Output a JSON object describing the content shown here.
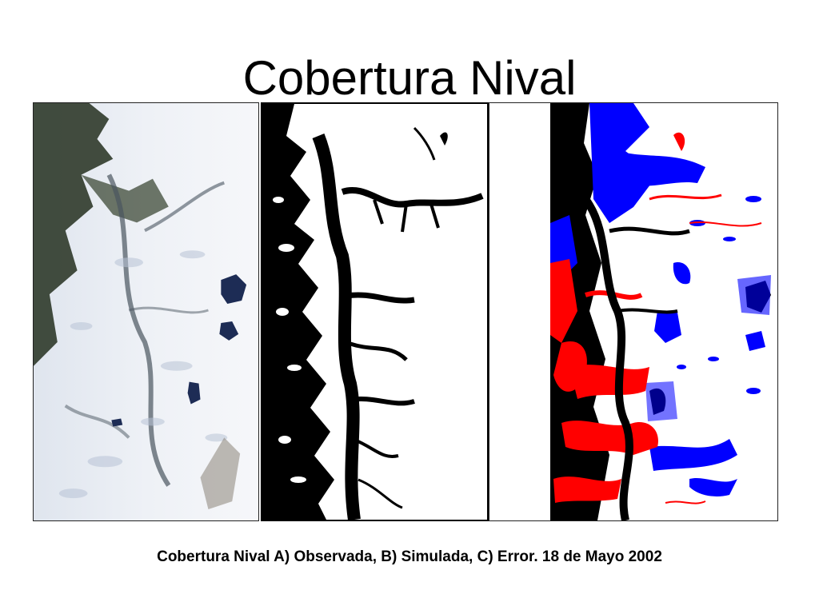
{
  "slide": {
    "title": "Cobertura Nival",
    "caption": "Cobertura Nival A) Observada, B) Simulada, C) Error. 18 de Mayo 2002"
  },
  "colors": {
    "snow": "#ffffff",
    "no_snow": "#000000",
    "error_red": "#ff0000",
    "error_blue": "#0000ff",
    "forest": "#2f3a2a",
    "snow_shadow": "#c9d2e2",
    "lake": "#1d2c55"
  }
}
